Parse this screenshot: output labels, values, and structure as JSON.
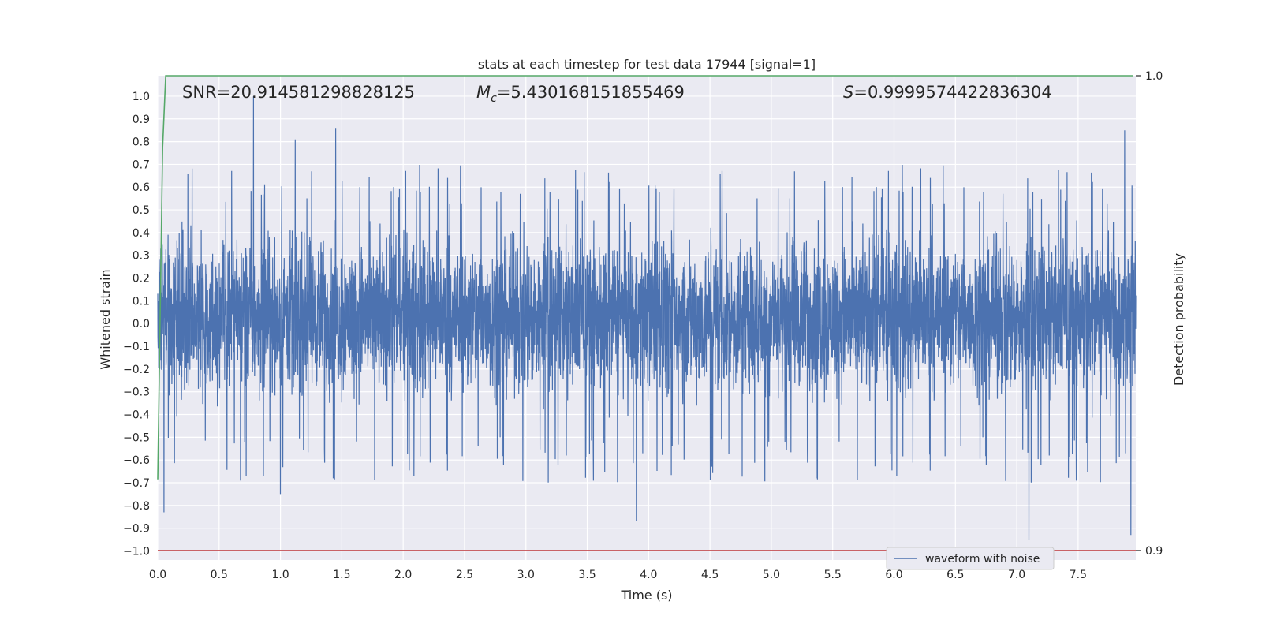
{
  "chart_data": {
    "type": "line",
    "title": "stats at each timestep for test data 17944 [signal=1]",
    "xlabel": "Time (s)",
    "ylabel": "Whitened strain",
    "y2label": "Detection probability",
    "xlim": [
      0.0,
      7.97
    ],
    "ylim": [
      -1.04,
      1.09
    ],
    "y2lim": [
      0.898,
      1.0
    ],
    "x_ticks": [
      0.0,
      0.5,
      1.0,
      1.5,
      2.0,
      2.5,
      3.0,
      3.5,
      4.0,
      4.5,
      5.0,
      5.5,
      6.0,
      6.5,
      7.0,
      7.5
    ],
    "x_tick_labels": [
      "0.0",
      "0.5",
      "1.0",
      "1.5",
      "2.0",
      "2.5",
      "3.0",
      "3.5",
      "4.0",
      "4.5",
      "5.0",
      "5.5",
      "6.0",
      "6.5",
      "7.0",
      "7.5"
    ],
    "y_ticks": [
      1.0,
      0.9,
      0.8,
      0.7,
      0.6,
      0.5,
      0.4,
      0.3,
      0.2,
      0.1,
      0.0,
      -0.1,
      -0.2,
      -0.3,
      -0.4,
      -0.5,
      -0.6,
      -0.7,
      -0.8,
      -0.9,
      -1.0
    ],
    "y_tick_labels": [
      "1.0",
      "0.9",
      "0.8",
      "0.7",
      "0.6",
      "0.5",
      "0.4",
      "0.3",
      "0.2",
      "0.1",
      "0.0",
      "−0.1",
      "−0.2",
      "−0.3",
      "−0.4",
      "−0.5",
      "−0.6",
      "−0.7",
      "−0.8",
      "−0.9",
      "−1.0"
    ],
    "y2_ticks": [
      1.0,
      0.9
    ],
    "y2_tick_labels": [
      "1.0",
      "0.9"
    ],
    "grid": true,
    "legend": {
      "placement": "lower-right",
      "entries": [
        "waveform with noise"
      ]
    },
    "annotations": {
      "snr": "SNR=20.914581298828125",
      "mc_symbol": "M",
      "mc_sub": "c",
      "mc_value": "=5.430168151855469",
      "s_symbol": "S",
      "s_value": "=0.9999574422836304"
    },
    "series": [
      {
        "name": "waveform with noise",
        "color": "#4c72b0",
        "description": "dense noisy strain, roughly between -0.45 and 0.5 with spikes",
        "x_range": [
          0.0,
          7.97
        ],
        "typical_band": [
          -0.42,
          0.48
        ],
        "peaks": [
          {
            "x": 0.78,
            "y": 1.0
          },
          {
            "x": 1.12,
            "y": 0.81
          },
          {
            "x": 1.45,
            "y": 0.86
          },
          {
            "x": 3.9,
            "y": -0.87
          },
          {
            "x": 7.1,
            "y": -0.95
          },
          {
            "x": 7.88,
            "y": 0.85
          },
          {
            "x": 7.93,
            "y": -0.93
          },
          {
            "x": 0.05,
            "y": -0.83
          },
          {
            "x": 1.0,
            "y": -0.75
          }
        ]
      },
      {
        "color": "#55a868",
        "axis": "right",
        "x": [
          0.0,
          0.02,
          0.04,
          0.065,
          0.1,
          7.95
        ],
        "y": [
          0.915,
          0.95,
          0.985,
          1.0,
          1.0,
          1.0
        ]
      },
      {
        "color": "#c44e52",
        "axis": "right",
        "x": [
          0.0,
          7.97
        ],
        "y": [
          0.9,
          0.9
        ]
      }
    ],
    "colors": {
      "plot_bg": "#eaeaf2",
      "grid": "#ffffff",
      "strain": "#4c72b0",
      "probability": "#55a868",
      "threshold": "#c44e52"
    }
  }
}
